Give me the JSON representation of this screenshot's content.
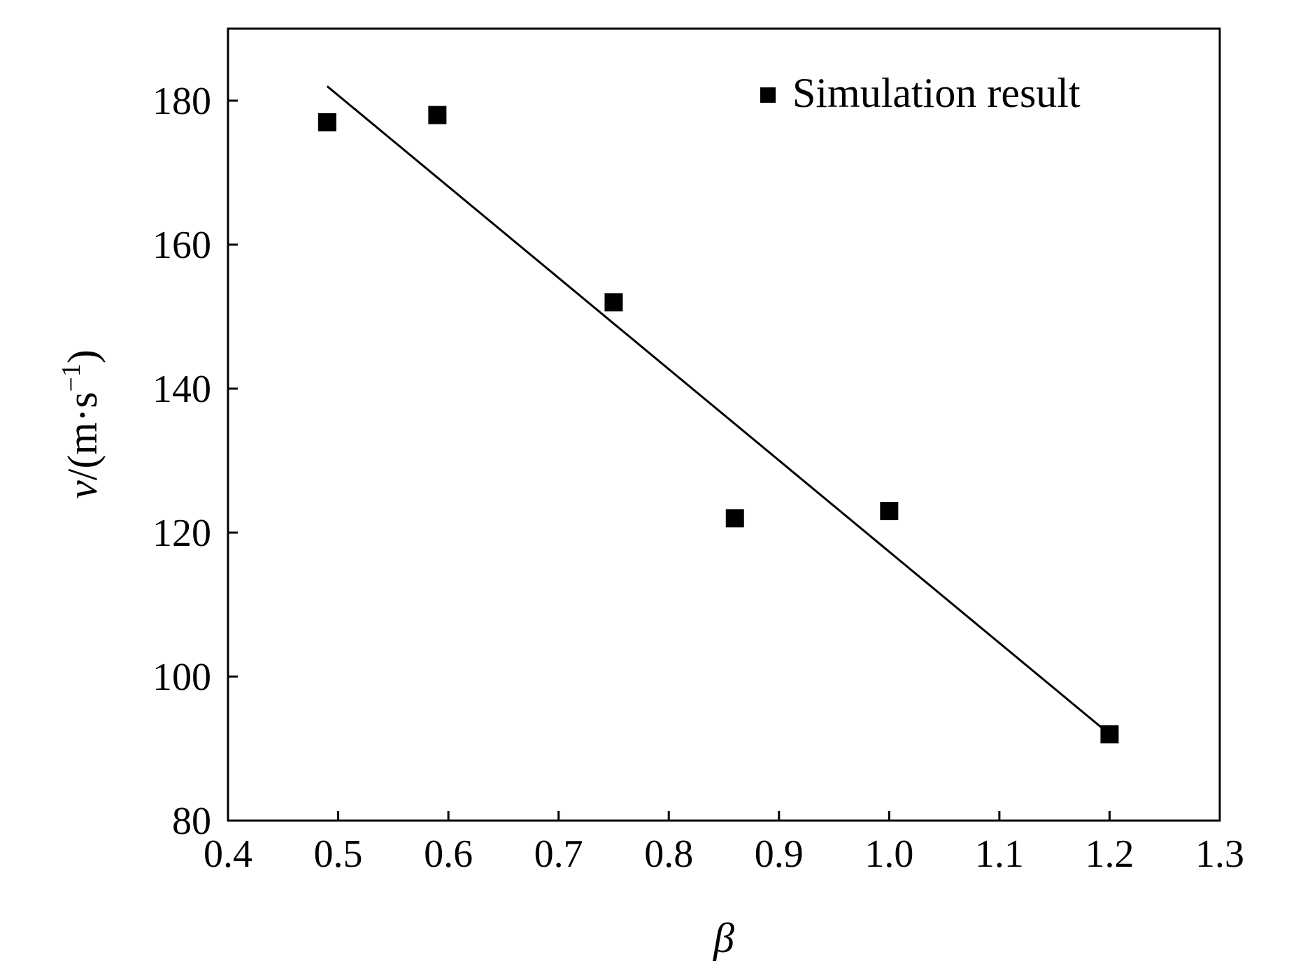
{
  "chart_data": {
    "type": "scatter",
    "title": "",
    "xlabel": "β",
    "ylabel": {
      "symbol": "v",
      "unit_prefix": "/(m·s",
      "unit_exp": "−1",
      "unit_suffix": ")"
    },
    "xlim": [
      0.4,
      1.3
    ],
    "ylim": [
      80,
      190
    ],
    "x_ticks": [
      "0.4",
      "0.5",
      "0.6",
      "0.7",
      "0.8",
      "0.9",
      "1.0",
      "1.1",
      "1.2",
      "1.3"
    ],
    "x_tick_values": [
      0.4,
      0.5,
      0.6,
      0.7,
      0.8,
      0.9,
      1.0,
      1.1,
      1.2,
      1.3
    ],
    "y_ticks": [
      "80",
      "100",
      "120",
      "140",
      "160",
      "180"
    ],
    "y_tick_values": [
      80,
      100,
      120,
      140,
      160,
      180
    ],
    "grid": false,
    "legend_position": "top-right",
    "series": [
      {
        "name": "Simulation result",
        "marker": "square",
        "color": "#000000",
        "points": [
          {
            "x": 0.49,
            "y": 177
          },
          {
            "x": 0.59,
            "y": 178
          },
          {
            "x": 0.75,
            "y": 152
          },
          {
            "x": 0.86,
            "y": 122
          },
          {
            "x": 1.0,
            "y": 123
          },
          {
            "x": 1.2,
            "y": 92
          }
        ]
      }
    ],
    "fit_line": {
      "color": "#000000",
      "start": {
        "x": 0.49,
        "y": 182
      },
      "end": {
        "x": 1.2,
        "y": 92
      }
    }
  }
}
